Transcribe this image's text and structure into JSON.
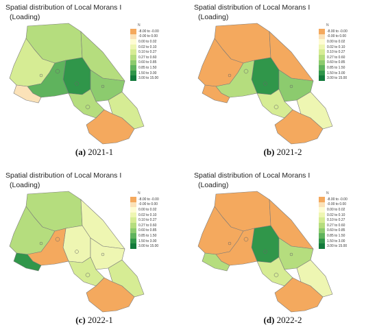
{
  "panels": [
    {
      "title_line1": "Spatial distribution of Local Morans I",
      "title_line2": "(Loading)",
      "caption_letter": "(a)",
      "caption_text": " 2021-1",
      "north_label": "N",
      "region_classes": {
        "northwest": "c4",
        "farnorth": "c5",
        "northeast": "c5",
        "central": "c8",
        "westcentral": "c7",
        "eastcentral": "c6",
        "southcentral": "c5",
        "south": "c0",
        "southwest": "c1",
        "east": "c4"
      }
    },
    {
      "title_line1": "Spatial distribution of Local Morans I",
      "title_line2": "(Loading)",
      "caption_letter": "(b)",
      "caption_text": " 2021-2",
      "north_label": "N",
      "region_classes": {
        "northwest": "c0",
        "farnorth": "c0",
        "northeast": "c0",
        "central": "c8",
        "westcentral": "c5",
        "eastcentral": "c6",
        "southcentral": "c4",
        "south": "c0",
        "southwest": "c0",
        "east": "c3"
      }
    },
    {
      "title_line1": "Spatial distribution of Local Morans I",
      "title_line2": "(Loading)",
      "caption_letter": "(c)",
      "caption_text": " 2022-1",
      "north_label": "N",
      "region_classes": {
        "northwest": "c5",
        "farnorth": "c5",
        "northeast": "c3",
        "central": "c3",
        "westcentral": "c0",
        "eastcentral": "c3",
        "southcentral": "c4",
        "south": "c0",
        "southwest": "c8",
        "east": "c4"
      }
    },
    {
      "title_line1": "Spatial distribution of Local Morans I",
      "title_line2": "(Loading)",
      "caption_letter": "(d)",
      "caption_text": " 2022-2",
      "north_label": "N",
      "region_classes": {
        "northwest": "c0",
        "farnorth": "c0",
        "northeast": "c0",
        "central": "c8",
        "westcentral": "c0",
        "eastcentral": "c5",
        "southcentral": "c4",
        "south": "c0",
        "southwest": "c5",
        "east": "c3"
      }
    }
  ],
  "legend": [
    {
      "label": "-8.00 to -0.00",
      "color": "#f4a95e"
    },
    {
      "label": "-0.00 to 0.00",
      "color": "#fbe2b8"
    },
    {
      "label": "0.00 to 0.02",
      "color": "#fefcd2"
    },
    {
      "label": "0.02 to 0.10",
      "color": "#eef6b2"
    },
    {
      "label": "0.10 to 0.27",
      "color": "#d6ec94"
    },
    {
      "label": "0.27 to 0.60",
      "color": "#b5dd7e"
    },
    {
      "label": "0.60 to 0.85",
      "color": "#8ccb6e"
    },
    {
      "label": "0.85 to 1.50",
      "color": "#5fb35d"
    },
    {
      "label": "1.50 to 3.00",
      "color": "#30964a"
    },
    {
      "label": "3.00 to 15.00",
      "color": "#137a3c"
    }
  ]
}
